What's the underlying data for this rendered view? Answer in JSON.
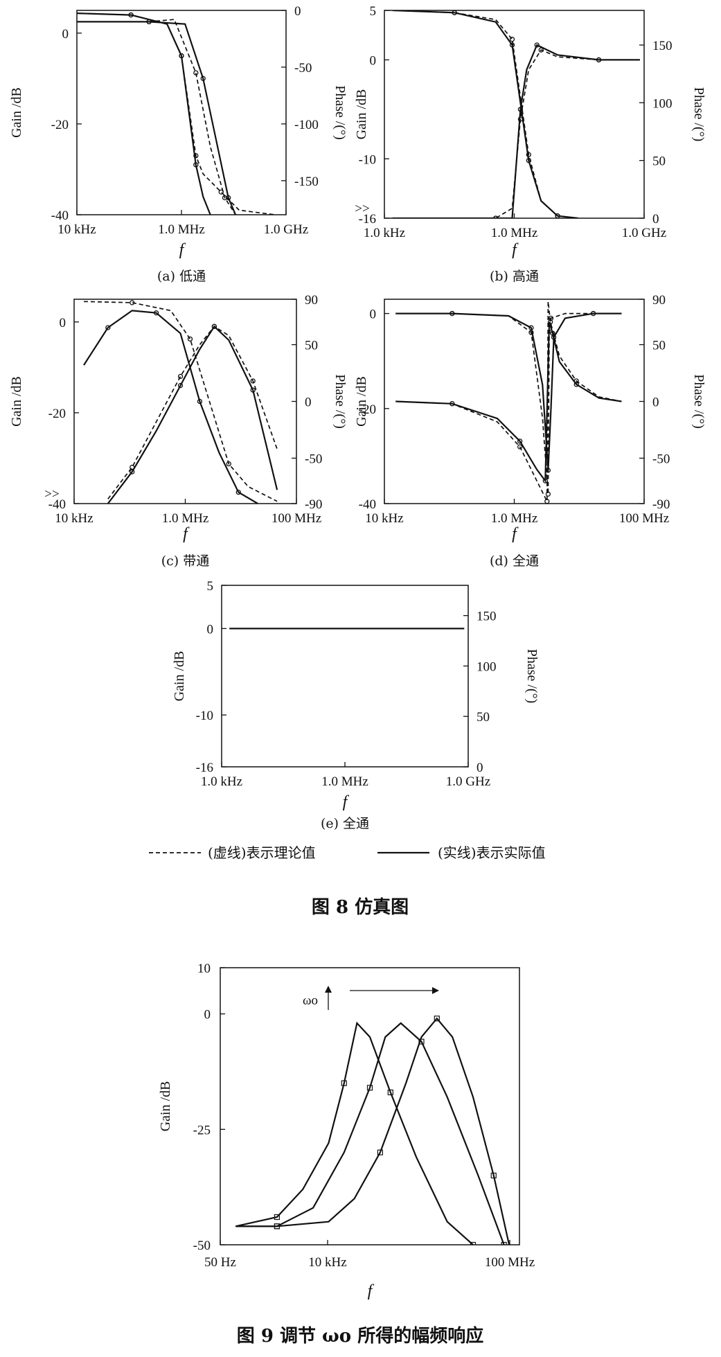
{
  "figure8": {
    "panels": [
      {
        "id": "a",
        "caption": "(a) 低通",
        "type": "line",
        "ylabel": "Gain /dB",
        "y2label": "Phase /(°)",
        "xlabel": "f",
        "x_ticks": [
          "10 kHz",
          "1.0 MHz",
          "1.0 GHz"
        ],
        "y_ticks": [
          "0",
          "-20",
          "-40"
        ],
        "y2_ticks": [
          "0",
          "-50",
          "-100",
          "-150"
        ],
        "ylim": [
          -40,
          5
        ],
        "y2lim": [
          -180,
          0
        ],
        "series": [
          {
            "axis": "gain",
            "style": "solid",
            "x": [
              3,
              5,
              6,
              6.4,
              6.6,
              6.8,
              7.0,
              7.2
            ],
            "y": [
              4.5,
              4,
              2,
              -5,
              -17,
              -29,
              -36,
              -40
            ]
          },
          {
            "axis": "gain",
            "style": "dashed",
            "x": [
              3,
              5,
              6,
              6.4,
              6.6,
              6.8,
              7.0,
              7.5,
              8,
              9
            ],
            "y": [
              4.5,
              4,
              2,
              -5,
              -16,
              -27,
              -31,
              -35,
              -39,
              -40
            ]
          },
          {
            "axis": "phase",
            "style": "solid",
            "x": [
              3,
              5.5,
              6.5,
              7.0,
              7.4,
              7.7,
              7.9
            ],
            "y": [
              -10,
              -10,
              -12,
              -60,
              -120,
              -165,
              -180
            ]
          },
          {
            "axis": "phase",
            "style": "dashed",
            "x": [
              3,
              5.5,
              6.2,
              6.8,
              7.2,
              7.6,
              7.9
            ],
            "y": [
              -10,
              -10,
              -8,
              -55,
              -120,
              -165,
              -180
            ]
          }
        ]
      },
      {
        "id": "b",
        "caption": "(b) 高通",
        "type": "line",
        "ylabel": "Gain /dB",
        "y2label": "Phase /(°)",
        "xlabel": "f",
        "x_ticks": [
          "1.0 kHz",
          "1.0 MHz",
          "1.0 GHz"
        ],
        "y_ticks": [
          "5",
          "0",
          "-10",
          "-16"
        ],
        "y2_ticks": [
          "150",
          "100",
          "50",
          "0"
        ],
        "ylim": [
          -16,
          5
        ],
        "y2lim": [
          0,
          180
        ],
        "annotation": ">>",
        "series": [
          {
            "axis": "gain",
            "style": "solid",
            "x": [
              3,
              5.5,
              5.9,
              6.1,
              6.25,
              6.5,
              7.0,
              8,
              9
            ],
            "y": [
              -16,
              -16,
              -16,
              -5,
              -1,
              1.5,
              0.5,
              0,
              0
            ]
          },
          {
            "axis": "gain",
            "style": "dashed",
            "x": [
              3,
              5.5,
              5.9,
              6.1,
              6.3,
              6.6,
              7.0,
              8,
              9
            ],
            "y": [
              -16,
              -16,
              -15,
              -6,
              -1,
              1,
              0.3,
              0,
              0
            ]
          },
          {
            "axis": "phase",
            "style": "solid",
            "x": [
              3,
              4.5,
              5.5,
              5.9,
              6.1,
              6.3,
              6.6,
              7.0,
              7.5
            ],
            "y": [
              180,
              178,
              170,
              150,
              100,
              50,
              15,
              2,
              0
            ]
          },
          {
            "axis": "phase",
            "style": "dashed",
            "x": [
              3,
              4.5,
              5.5,
              5.9,
              6.1,
              6.3,
              6.6,
              7.0,
              7.5
            ],
            "y": [
              180,
              178,
              172,
              155,
              105,
              55,
              15,
              2,
              0
            ]
          }
        ]
      },
      {
        "id": "c",
        "caption": "(c) 带通",
        "type": "line",
        "ylabel": "Gain /dB",
        "y2label": "Phase /(°)",
        "xlabel": "f",
        "x_ticks": [
          "10 kHz",
          "1.0 MHz",
          "100 MHz"
        ],
        "y_ticks": [
          "0",
          "-20",
          "-40"
        ],
        "y2_ticks": [
          "90",
          "50",
          "0",
          "-50",
          "-90"
        ],
        "ylim": [
          -40,
          5
        ],
        "y2lim": [
          -90,
          90
        ],
        "annotation": ">>",
        "series": [
          {
            "axis": "gain",
            "style": "solid",
            "x": [
              4.5,
              5.0,
              5.5,
              6.0,
              6.4,
              6.7,
              7.0,
              7.5,
              8.0
            ],
            "y": [
              -40,
              -33,
              -24,
              -14,
              -6,
              -1,
              -4,
              -15,
              -37
            ]
          },
          {
            "axis": "gain",
            "style": "dashed",
            "x": [
              4.5,
              5.0,
              5.5,
              6.0,
              6.4,
              6.7,
              7.0,
              7.5,
              8.0
            ],
            "y": [
              -39,
              -32,
              -22,
              -12,
              -5,
              -1,
              -3,
              -13,
              -28
            ]
          },
          {
            "axis": "phase",
            "style": "solid",
            "x": [
              4,
              4.5,
              5.0,
              5.5,
              6.0,
              6.4,
              6.8,
              7.2,
              7.6
            ],
            "y": [
              32,
              65,
              80,
              78,
              60,
              0,
              -45,
              -80,
              -90
            ]
          },
          {
            "axis": "phase",
            "style": "dashed",
            "x": [
              4,
              5.0,
              5.8,
              6.2,
              6.6,
              7.0,
              7.4,
              8.0
            ],
            "y": [
              88,
              87,
              80,
              55,
              0,
              -55,
              -75,
              -88
            ]
          }
        ]
      },
      {
        "id": "d",
        "caption": "(d) 全通",
        "type": "line",
        "ylabel": "Gain /dB",
        "y2label": "Phase /(°)",
        "xlabel": "f",
        "x_ticks": [
          "10 kHz",
          "1.0 MHz",
          "100 MHz"
        ],
        "y_ticks": [
          "0",
          "-20",
          "-40"
        ],
        "y2_ticks": [
          "90",
          "50",
          "0",
          "-50",
          "-90"
        ],
        "ylim": [
          -40,
          3
        ],
        "y2lim": [
          -90,
          90
        ],
        "series": [
          {
            "axis": "gain",
            "style": "solid",
            "x": [
              4,
              5,
              6.0,
              6.4,
              6.6,
              6.7,
              6.75,
              6.8,
              7.0,
              7.5,
              8.0
            ],
            "y": [
              0,
              0,
              -0.5,
              -3,
              -15,
              -33,
              -20,
              -5,
              -1,
              0,
              0
            ]
          },
          {
            "axis": "gain",
            "style": "dashed",
            "x": [
              4,
              5,
              6.0,
              6.4,
              6.6,
              6.7,
              6.72,
              6.75,
              7.0,
              7.5,
              8.0
            ],
            "y": [
              0,
              0,
              -0.5,
              -4,
              -22,
              -38,
              -5,
              -1,
              0,
              0,
              0
            ]
          },
          {
            "axis": "phase",
            "style": "solid",
            "x": [
              4,
              5,
              5.8,
              6.2,
              6.5,
              6.65,
              6.72,
              6.78,
              6.9,
              7.2,
              7.6,
              8.0
            ],
            "y": [
              0,
              -2,
              -15,
              -35,
              -60,
              -70,
              70,
              60,
              35,
              15,
              3,
              0
            ]
          },
          {
            "axis": "phase",
            "style": "dashed",
            "x": [
              4,
              5,
              5.8,
              6.2,
              6.5,
              6.68,
              6.7,
              6.74,
              6.9,
              7.2,
              7.6,
              8.0
            ],
            "y": [
              0,
              -2,
              -18,
              -40,
              -70,
              -88,
              88,
              70,
              40,
              18,
              4,
              0
            ]
          }
        ]
      },
      {
        "id": "e",
        "caption": "(e) 全通",
        "type": "line",
        "ylabel": "Gain /dB",
        "y2label": "Phase /(°)",
        "xlabel": "f",
        "x_ticks": [
          "1.0 kHz",
          "1.0 MHz",
          "1.0 GHz"
        ],
        "y_ticks": [
          "5",
          "0",
          "-10",
          "-16"
        ],
        "y2_ticks": [
          "150",
          "100",
          "50",
          "0"
        ],
        "ylim": [
          -16,
          5
        ],
        "y2lim": [
          0,
          180
        ],
        "series": [
          {
            "axis": "gain",
            "style": "solid",
            "x": [
              3,
              9
            ],
            "y": [
              0,
              0
            ]
          },
          {
            "axis": "gain",
            "style": "dashed",
            "x": [
              3,
              9
            ],
            "y": [
              0,
              0
            ]
          }
        ]
      }
    ],
    "legend": {
      "dashed": "(虚线)表示理论值",
      "solid": "(实线)表示实际值"
    },
    "caption": "图 8   仿真图"
  },
  "chart_data": {
    "type": "line",
    "title": "",
    "xlabel": "f",
    "ylabel": "Gain /dB",
    "x_ticks": [
      "50 Hz",
      "10 kHz",
      "100 MHz"
    ],
    "y_ticks": [
      "10",
      "0",
      "-25",
      "-50"
    ],
    "ylim": [
      -50,
      10
    ],
    "x_scale": "log",
    "annotation": "ωo",
    "series": [
      {
        "x": [
          1.7,
          2.5,
          3.0,
          3.5,
          3.8,
          4.05,
          4.3,
          4.7,
          5.2,
          5.8,
          6.3
        ],
        "y": [
          -46,
          -44,
          -38,
          -28,
          -15,
          -2,
          -5,
          -17,
          -31,
          -45,
          -50
        ]
      },
      {
        "x": [
          1.7,
          2.5,
          3.2,
          3.8,
          4.3,
          4.6,
          4.9,
          5.3,
          5.8,
          6.4,
          6.9
        ],
        "y": [
          -46,
          -46,
          -42,
          -30,
          -16,
          -5,
          -2,
          -6,
          -18,
          -35,
          -50
        ]
      },
      {
        "x": [
          1.7,
          2.5,
          3.5,
          4.0,
          4.5,
          5.0,
          5.3,
          5.6,
          5.9,
          6.3,
          6.7,
          7.0
        ],
        "y": [
          -46,
          -46,
          -45,
          -40,
          -30,
          -15,
          -5,
          -1,
          -5,
          -18,
          -35,
          -50
        ]
      }
    ]
  },
  "figure9": {
    "caption": "图 9   调节 ωo 所得的幅频响应"
  }
}
